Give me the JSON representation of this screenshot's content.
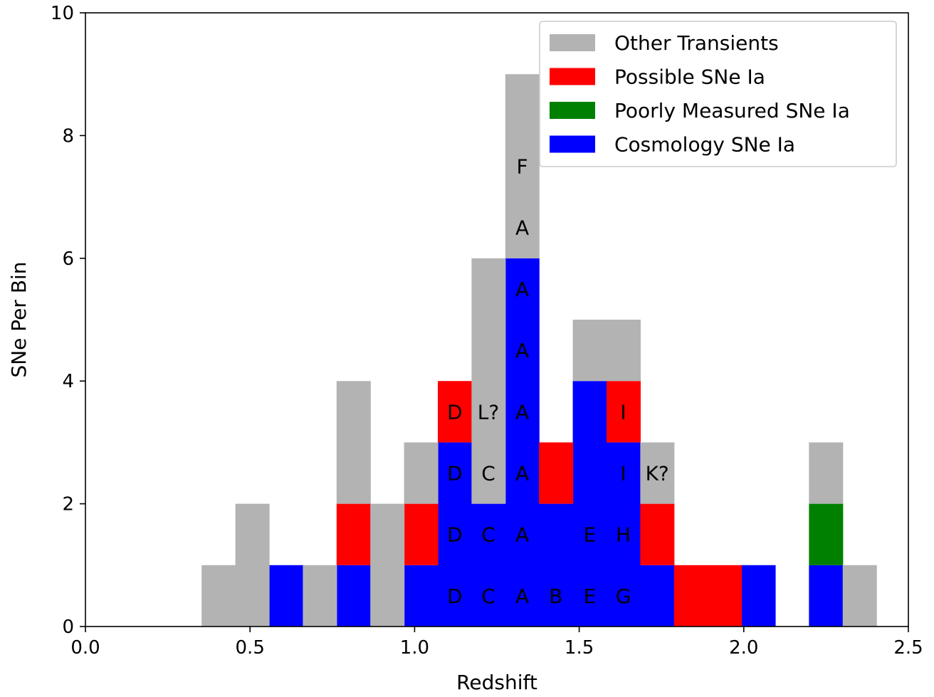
{
  "chart_data": {
    "type": "bar",
    "subtype": "stacked histogram",
    "title": "",
    "xlabel": "Redshift",
    "ylabel": "SNe Per Bin",
    "xlim": [
      0.0,
      2.5
    ],
    "ylim": [
      0,
      10
    ],
    "xticks": [
      "0.0",
      "0.5",
      "1.0",
      "1.5",
      "2.0",
      "2.5"
    ],
    "yticks": [
      "0",
      "2",
      "4",
      "6",
      "8",
      "10"
    ],
    "bin_width": 0.1025,
    "bin_starts": [
      0.353,
      0.4555,
      0.558,
      0.6605,
      0.763,
      0.8655,
      0.968,
      1.0705,
      1.173,
      1.2755,
      1.378,
      1.4805,
      1.583,
      1.6855,
      1.788,
      1.8905,
      1.993,
      2.0955,
      2.198,
      2.3005
    ],
    "series": [
      {
        "name": "Cosmology SNe Ia",
        "color": "#0000ff",
        "values": [
          0,
          0,
          1,
          0,
          1,
          0,
          1,
          3,
          2,
          6,
          2,
          4,
          3,
          1,
          0,
          0,
          1,
          0,
          1,
          0
        ]
      },
      {
        "name": "Poorly Measured SNe Ia",
        "color": "#008000",
        "values": [
          0,
          0,
          0,
          0,
          0,
          0,
          0,
          0,
          0,
          0,
          0,
          0,
          0,
          0,
          0,
          0,
          0,
          0,
          1,
          0
        ]
      },
      {
        "name": "Possible SNe Ia",
        "color": "#ff0000",
        "values": [
          0,
          0,
          0,
          0,
          1,
          0,
          1,
          1,
          0,
          0,
          1,
          0,
          1,
          1,
          1,
          1,
          0,
          0,
          0,
          0
        ]
      },
      {
        "name": "Other Transients",
        "color": "#b3b3b3",
        "values": [
          1,
          2,
          0,
          1,
          2,
          2,
          1,
          0,
          4,
          3,
          0,
          1,
          1,
          1,
          0,
          0,
          0,
          0,
          1,
          1
        ]
      }
    ],
    "legend_order": [
      "Other Transients",
      "Possible SNe Ia",
      "Poorly Measured SNe Ia",
      "Cosmology SNe Ia"
    ],
    "legend_placement": "top-right",
    "grid": false,
    "annotations": [
      {
        "text": "D",
        "x": 1.122,
        "y": 0.5
      },
      {
        "text": "C",
        "x": 1.224,
        "y": 0.5
      },
      {
        "text": "A",
        "x": 1.327,
        "y": 0.5
      },
      {
        "text": "B",
        "x": 1.429,
        "y": 0.5
      },
      {
        "text": "E",
        "x": 1.532,
        "y": 0.5
      },
      {
        "text": "G",
        "x": 1.634,
        "y": 0.5
      },
      {
        "text": "D",
        "x": 1.122,
        "y": 1.5
      },
      {
        "text": "C",
        "x": 1.224,
        "y": 1.5
      },
      {
        "text": "A",
        "x": 1.327,
        "y": 1.5
      },
      {
        "text": "E",
        "x": 1.532,
        "y": 1.5
      },
      {
        "text": "H",
        "x": 1.634,
        "y": 1.5
      },
      {
        "text": "D",
        "x": 1.122,
        "y": 2.5
      },
      {
        "text": "C",
        "x": 1.224,
        "y": 2.5
      },
      {
        "text": "A",
        "x": 1.327,
        "y": 2.5
      },
      {
        "text": "I",
        "x": 1.634,
        "y": 2.5
      },
      {
        "text": "K?",
        "x": 1.737,
        "y": 2.5
      },
      {
        "text": "D",
        "x": 1.122,
        "y": 3.5
      },
      {
        "text": "L?",
        "x": 1.224,
        "y": 3.5
      },
      {
        "text": "A",
        "x": 1.327,
        "y": 3.5
      },
      {
        "text": "I",
        "x": 1.634,
        "y": 3.5
      },
      {
        "text": "A",
        "x": 1.327,
        "y": 4.5
      },
      {
        "text": "A",
        "x": 1.327,
        "y": 5.5
      },
      {
        "text": "A",
        "x": 1.327,
        "y": 6.5
      },
      {
        "text": "F",
        "x": 1.327,
        "y": 7.5
      }
    ]
  }
}
